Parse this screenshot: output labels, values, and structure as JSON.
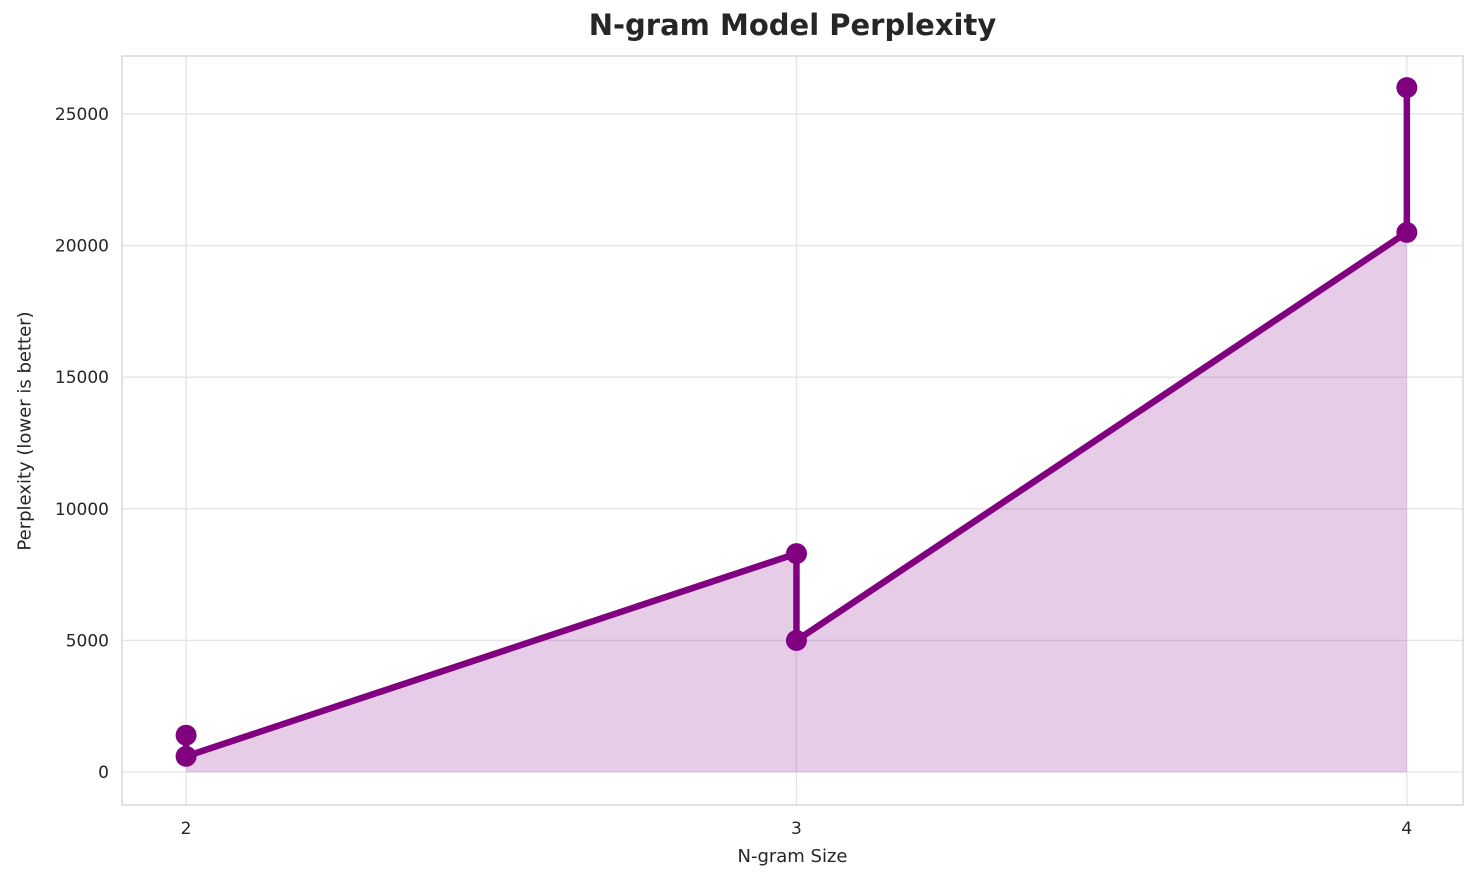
{
  "chart_data": {
    "type": "line",
    "title": "N-gram Model Perplexity",
    "xlabel": "N-gram Size",
    "ylabel": "Perplexity (lower is better)",
    "x": [
      2,
      2,
      3,
      3,
      4,
      4
    ],
    "y": [
      1400,
      600,
      8300,
      5000,
      20500,
      26000
    ],
    "x_ticks": [
      2,
      3,
      4
    ],
    "y_ticks": [
      0,
      5000,
      10000,
      15000,
      20000,
      25000
    ],
    "xlim": [
      1.895,
      4.092
    ],
    "ylim": [
      -1250,
      27200
    ],
    "grid": true,
    "legend_position": "none",
    "fill_to_zero": true,
    "line_color": "#800080",
    "marker_color": "#800080",
    "fill_color": "rgba(128,0,128,0.2)",
    "grid_color": "#e4e4e4",
    "border_color": "#d8d8d8",
    "text_color": "#262626",
    "background_color": "#ffffff"
  }
}
